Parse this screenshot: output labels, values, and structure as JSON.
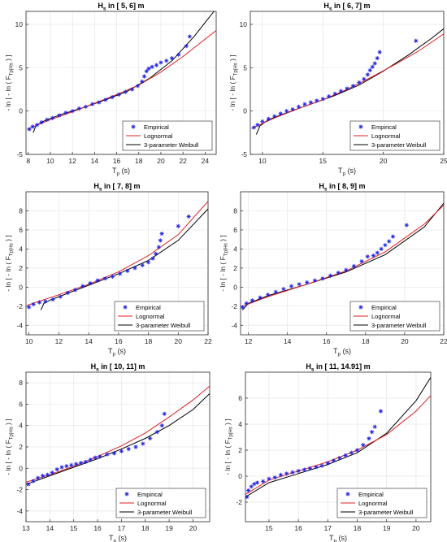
{
  "figure": {
    "background": "#ffffff"
  },
  "style": {
    "empirical_color": "#1f1fe6",
    "lognormal_color": "#e02020",
    "weibull_color": "#000000",
    "grid_color": "#e6e6e6",
    "axis_color": "#262626"
  },
  "chart_data": [
    {
      "type": "scatter",
      "title": "H_s in [ 5, 6] m",
      "title_parts": {
        "main": "H",
        "sub": "s",
        "rest": " in [ 5, 6] m"
      },
      "xlabel_parts": {
        "main": "T",
        "sub": "p",
        "rest": " (s)"
      },
      "ylabel_parts": {
        "pre": "- ln [ - ln ( F",
        "sub": "Tp|Hs",
        "post": " ) ]"
      },
      "xlim": [
        7.8,
        25
      ],
      "ylim": [
        -5,
        11.5
      ],
      "xticks": [
        8,
        10,
        12,
        14,
        16,
        18,
        20,
        22,
        24
      ],
      "yticks": [
        -5,
        0,
        5,
        10
      ],
      "grid": true,
      "legend_position": "bottom-right",
      "legend": [
        "Empirical",
        "Lognormal",
        "3-parameter Weibull"
      ],
      "empirical": {
        "x": [
          8.1,
          8.4,
          8.8,
          9.2,
          9.7,
          10.2,
          10.8,
          11.4,
          12.0,
          12.6,
          13.2,
          13.8,
          14.4,
          15.0,
          15.6,
          16.2,
          16.8,
          17.4,
          17.9,
          18.3,
          18.5,
          18.7,
          18.9,
          19.2,
          19.6,
          20.0,
          20.5,
          21.0,
          21.6,
          22.3,
          22.6
        ],
        "y": [
          -2.1,
          -1.8,
          -1.6,
          -1.3,
          -1.0,
          -0.8,
          -0.5,
          -0.2,
          0.0,
          0.3,
          0.5,
          0.8,
          1.0,
          1.3,
          1.6,
          1.9,
          2.2,
          2.5,
          2.9,
          3.4,
          4.0,
          4.6,
          4.9,
          5.1,
          5.3,
          5.6,
          5.8,
          6.1,
          6.5,
          7.5,
          8.6
        ]
      },
      "lognormal": {
        "x": [
          7.9,
          10,
          12,
          14,
          16,
          18,
          20,
          22,
          24,
          25
        ],
        "y": [
          -2.1,
          -1.0,
          -0.1,
          0.9,
          1.9,
          3.0,
          4.5,
          6.3,
          8.3,
          9.3
        ]
      },
      "weibull": {
        "x": [
          8.45,
          8.7,
          9.5,
          11,
          13,
          15,
          17,
          19,
          21,
          23,
          24.8
        ],
        "y": [
          -2.5,
          -1.7,
          -1.1,
          -0.4,
          0.4,
          1.3,
          2.3,
          3.8,
          5.8,
          8.6,
          11.5
        ]
      }
    },
    {
      "type": "scatter",
      "title": "H_s in [ 6, 7] m",
      "title_parts": {
        "main": "H",
        "sub": "s",
        "rest": " in [ 6, 7] m"
      },
      "xlabel_parts": {
        "main": "T",
        "sub": "p",
        "rest": " (s)"
      },
      "ylabel_parts": {
        "pre": "- ln [ - ln ( F",
        "sub": "Tp|Hs",
        "post": " ) ]"
      },
      "xlim": [
        9,
        25
      ],
      "ylim": [
        -5,
        11.5
      ],
      "xticks": [
        10,
        15,
        20,
        25
      ],
      "yticks": [
        -5,
        0,
        5,
        10
      ],
      "grid": true,
      "legend_position": "bottom-right",
      "legend": [
        "Empirical",
        "Lognormal",
        "3-parameter Weibull"
      ],
      "empirical": {
        "x": [
          9.3,
          9.6,
          10.0,
          10.5,
          11.0,
          11.5,
          12.0,
          12.5,
          13.0,
          13.5,
          14.0,
          14.5,
          15.0,
          15.5,
          16.0,
          16.5,
          17.0,
          17.5,
          18.0,
          18.4,
          18.7,
          18.9,
          19.1,
          19.3,
          19.5,
          19.7,
          22.7
        ],
        "y": [
          -1.9,
          -1.6,
          -1.2,
          -0.9,
          -0.6,
          -0.3,
          0.0,
          0.2,
          0.5,
          0.8,
          1.0,
          1.2,
          1.4,
          1.7,
          2.0,
          2.3,
          2.6,
          2.9,
          3.3,
          3.7,
          4.2,
          4.7,
          5.1,
          5.5,
          6.1,
          6.8,
          8.1
        ]
      },
      "lognormal": {
        "x": [
          9.1,
          11,
          13,
          15,
          17,
          19,
          21,
          23,
          25
        ],
        "y": [
          -2.0,
          -0.8,
          0.3,
          1.3,
          2.5,
          3.9,
          5.4,
          7.0,
          8.9
        ]
      },
      "weibull": {
        "x": [
          9.5,
          9.8,
          10.5,
          12,
          14,
          16,
          18,
          20,
          22,
          24,
          25
        ],
        "y": [
          -2.7,
          -1.7,
          -1.0,
          -0.2,
          0.8,
          1.8,
          3.0,
          4.6,
          6.4,
          8.4,
          9.5
        ]
      }
    },
    {
      "type": "scatter",
      "title": "H_s in [ 7, 8] m",
      "title_parts": {
        "main": "H",
        "sub": "s",
        "rest": " in [ 7, 8] m"
      },
      "xlabel_parts": {
        "main": "T",
        "sub": "p",
        "rest": " (s)"
      },
      "ylabel_parts": {
        "pre": "- ln [ - ln ( F",
        "sub": "Tp|Hs",
        "post": " ) ]"
      },
      "xlim": [
        9.8,
        22
      ],
      "ylim": [
        -5,
        10
      ],
      "xticks": [
        10,
        12,
        14,
        16,
        18,
        20,
        22
      ],
      "yticks": [
        -4,
        -2,
        0,
        2,
        4,
        6,
        8
      ],
      "grid": true,
      "legend_position": "bottom-right",
      "legend": [
        "Empirical",
        "Lognormal",
        "3-parameter Weibull"
      ],
      "empirical": {
        "x": [
          10.0,
          10.3,
          10.7,
          11.1,
          11.6,
          12.1,
          12.6,
          13.1,
          13.6,
          14.1,
          14.6,
          15.1,
          15.6,
          16.1,
          16.6,
          17.1,
          17.6,
          18.0,
          18.3,
          18.5,
          18.7,
          18.8,
          18.9,
          20.0,
          20.7
        ],
        "y": [
          -2.1,
          -1.8,
          -1.6,
          -1.5,
          -1.3,
          -1.0,
          -0.6,
          -0.3,
          0.1,
          0.4,
          0.7,
          0.9,
          1.1,
          1.4,
          1.7,
          2.0,
          2.3,
          2.6,
          3.0,
          3.5,
          4.2,
          4.9,
          5.6,
          6.4,
          7.4
        ]
      },
      "lognormal": {
        "x": [
          9.9,
          12,
          14,
          16,
          18,
          20,
          22
        ],
        "y": [
          -1.9,
          -0.8,
          0.3,
          1.6,
          3.3,
          5.5,
          9.0
        ]
      },
      "weibull": {
        "x": [
          10.8,
          11.0,
          11.5,
          12,
          14,
          16,
          18,
          20,
          22
        ],
        "y": [
          -2.4,
          -1.7,
          -1.3,
          -1.0,
          0.2,
          1.4,
          2.8,
          4.9,
          8.2
        ]
      }
    },
    {
      "type": "scatter",
      "title": "H_s in [ 8, 9] m",
      "title_parts": {
        "main": "H",
        "sub": "s",
        "rest": " in [ 8, 9] m"
      },
      "xlabel_parts": {
        "main": "T",
        "sub": "p",
        "rest": " (s)"
      },
      "ylabel_parts": {
        "pre": "- ln [ - ln ( F",
        "sub": "Tp|Hs",
        "post": " ) ]"
      },
      "xlim": [
        11.6,
        22
      ],
      "ylim": [
        -5,
        10
      ],
      "xticks": [
        12,
        14,
        16,
        18,
        20,
        22
      ],
      "yticks": [
        -4,
        -2,
        0,
        2,
        4,
        6,
        8
      ],
      "grid": true,
      "legend_position": "bottom-right",
      "legend": [
        "Empirical",
        "Lognormal",
        "3-parameter Weibull"
      ],
      "empirical": {
        "x": [
          11.7,
          11.9,
          12.2,
          12.6,
          13.0,
          13.4,
          13.8,
          14.2,
          14.6,
          15.0,
          15.4,
          15.8,
          16.2,
          16.6,
          17.0,
          17.4,
          17.8,
          18.1,
          18.4,
          18.6,
          18.8,
          19.0,
          19.2,
          19.4,
          20.1
        ],
        "y": [
          -2.1,
          -1.7,
          -1.4,
          -1.1,
          -0.8,
          -0.5,
          -0.2,
          0.1,
          0.3,
          0.5,
          0.7,
          0.9,
          1.2,
          1.5,
          1.8,
          2.2,
          2.7,
          3.2,
          3.3,
          3.6,
          4.0,
          4.4,
          4.8,
          5.3,
          6.5
        ]
      },
      "lognormal": {
        "x": [
          11.7,
          13,
          15,
          17,
          19,
          21,
          22
        ],
        "y": [
          -2.0,
          -1.0,
          0.3,
          1.7,
          3.7,
          6.6,
          8.6
        ]
      },
      "weibull": {
        "x": [
          11.7,
          12,
          13,
          15,
          17,
          19,
          21,
          22
        ],
        "y": [
          -2.4,
          -1.7,
          -0.9,
          0.3,
          1.6,
          3.4,
          6.3,
          8.8
        ]
      }
    },
    {
      "type": "scatter",
      "title": "H_s in [ 10, 11] m",
      "title_parts": {
        "main": "H",
        "sub": "s",
        "rest": " in [ 10, 11] m"
      },
      "xlabel_parts": {
        "main": "T",
        "sub": "p",
        "rest": " (s)"
      },
      "ylabel_parts": {
        "pre": "- ln [ - ln ( F",
        "sub": "Tp|Hs",
        "post": " ) ]"
      },
      "xlim": [
        13,
        20.7
      ],
      "ylim": [
        -5,
        9
      ],
      "xticks": [
        13,
        14,
        15,
        16,
        17,
        18,
        19,
        20
      ],
      "yticks": [
        -4,
        -2,
        0,
        2,
        4,
        6,
        8
      ],
      "grid": true,
      "legend_position": "bottom-right",
      "legend": [
        "Empirical",
        "Lognormal",
        "3-parameter Weibull"
      ],
      "empirical": {
        "x": [
          13.1,
          13.3,
          13.5,
          13.7,
          13.9,
          14.1,
          14.3,
          14.5,
          14.7,
          14.9,
          15.1,
          15.3,
          15.5,
          15.7,
          15.9,
          16.1,
          16.4,
          16.7,
          17.0,
          17.3,
          17.6,
          17.9,
          18.2,
          18.5,
          18.7,
          18.8
        ],
        "y": [
          -1.5,
          -1.2,
          -0.9,
          -0.7,
          -0.6,
          -0.4,
          -0.1,
          0.1,
          0.2,
          0.3,
          0.4,
          0.5,
          0.6,
          0.8,
          1.0,
          1.1,
          1.3,
          1.4,
          1.6,
          1.8,
          2.0,
          2.3,
          2.8,
          3.4,
          4.0,
          5.1
        ]
      },
      "lognormal": {
        "x": [
          13.0,
          14,
          15,
          16,
          17,
          18,
          19,
          20,
          20.7
        ],
        "y": [
          -1.3,
          -0.6,
          0.2,
          1.1,
          2.1,
          3.3,
          4.8,
          6.4,
          7.7
        ]
      },
      "weibull": {
        "x": [
          13.0,
          14,
          15,
          16,
          17,
          18,
          19,
          20,
          20.7
        ],
        "y": [
          -1.5,
          -0.7,
          0.1,
          0.9,
          1.8,
          2.8,
          4.0,
          5.5,
          7.0
        ]
      }
    },
    {
      "type": "scatter",
      "title": "H_s in [ 11, 14.91] m",
      "title_parts": {
        "main": "H",
        "sub": "s",
        "rest": " in [ 11, 14.91] m"
      },
      "xlabel_parts": {
        "main": "T",
        "sub": "p",
        "rest": " (s)"
      },
      "ylabel_parts": {
        "pre": "- ln [ - ln ( F",
        "sub": "Tp|Hs",
        "post": " ) ]"
      },
      "xlim": [
        14.2,
        20.5
      ],
      "ylim": [
        -3.5,
        8
      ],
      "xticks": [
        15,
        16,
        17,
        18,
        19,
        20
      ],
      "yticks": [
        -2,
        0,
        2,
        4,
        6
      ],
      "grid": true,
      "legend_position": "bottom-right",
      "legend": [
        "Empirical",
        "Lognormal",
        "3-parameter Weibull"
      ],
      "empirical": {
        "x": [
          14.25,
          14.3,
          14.4,
          14.5,
          14.6,
          14.8,
          15.0,
          15.2,
          15.4,
          15.6,
          15.8,
          16.0,
          16.2,
          16.4,
          16.6,
          16.8,
          17.0,
          17.2,
          17.4,
          17.6,
          17.8,
          18.0,
          18.2,
          18.4,
          18.5,
          18.6,
          18.8
        ],
        "y": [
          -1.6,
          -1.1,
          -0.8,
          -0.6,
          -0.5,
          -0.4,
          -0.2,
          -0.1,
          0.1,
          0.2,
          0.3,
          0.4,
          0.5,
          0.6,
          0.7,
          0.8,
          1.0,
          1.2,
          1.4,
          1.6,
          1.8,
          2.0,
          2.4,
          2.9,
          3.4,
          3.8,
          5.0
        ]
      },
      "lognormal": {
        "x": [
          14.2,
          15,
          16,
          17,
          18,
          19,
          20,
          20.5
        ],
        "y": [
          -1.4,
          -0.3,
          0.4,
          1.1,
          2.0,
          3.2,
          5.0,
          6.2
        ]
      },
      "weibull": {
        "x": [
          14.2,
          15,
          16,
          17,
          18,
          19,
          20,
          20.5
        ],
        "y": [
          -1.6,
          -0.5,
          0.2,
          0.9,
          1.8,
          3.3,
          5.8,
          7.6
        ]
      }
    }
  ]
}
